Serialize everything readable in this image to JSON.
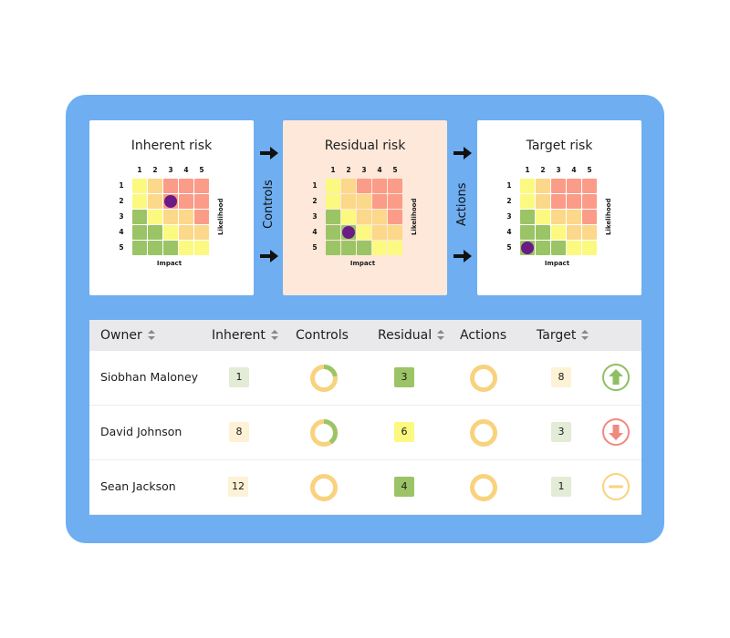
{
  "colors": {
    "frame": "#6eaef1",
    "residual_card_bg": "#fde8da",
    "dot": "#6a1b86",
    "green": "#9bc466",
    "yellow": "#fbf980",
    "light_orange": "#fbd88a",
    "salmon": "#fb9c89",
    "ring_track": "#f9d27e",
    "ring_fill": "#9bc466"
  },
  "matrices": [
    {
      "title": "Inherent risk",
      "x_axis_label": "Impact",
      "y_axis_label": "Likelihood",
      "columns": [
        "1",
        "2",
        "3",
        "4",
        "5"
      ],
      "rows": [
        "1",
        "2",
        "3",
        "4",
        "5"
      ],
      "cells": [
        [
          "Y",
          "O",
          "S",
          "S",
          "S"
        ],
        [
          "Y",
          "O",
          "S",
          "S",
          "S"
        ],
        [
          "G",
          "Y",
          "O",
          "O",
          "S"
        ],
        [
          "G",
          "G",
          "Y",
          "O",
          "O"
        ],
        [
          "G",
          "G",
          "G",
          "Y",
          "Y"
        ]
      ],
      "marker": {
        "row": 2,
        "col": 3
      }
    },
    {
      "title": "Residual risk",
      "x_axis_label": "Impact",
      "y_axis_label": "Likelihood",
      "columns": [
        "1",
        "2",
        "3",
        "4",
        "5"
      ],
      "rows": [
        "1",
        "2",
        "3",
        "4",
        "5"
      ],
      "cells": [
        [
          "Y",
          "O",
          "S",
          "S",
          "S"
        ],
        [
          "Y",
          "O",
          "O",
          "S",
          "S"
        ],
        [
          "G",
          "Y",
          "O",
          "O",
          "S"
        ],
        [
          "G",
          "G",
          "Y",
          "O",
          "O"
        ],
        [
          "G",
          "G",
          "G",
          "Y",
          "Y"
        ]
      ],
      "marker": {
        "row": 4,
        "col": 2
      }
    },
    {
      "title": "Target risk",
      "x_axis_label": "Impact",
      "y_axis_label": "Likelihood",
      "columns": [
        "1",
        "2",
        "3",
        "4",
        "5"
      ],
      "rows": [
        "1",
        "2",
        "3",
        "4",
        "5"
      ],
      "cells": [
        [
          "Y",
          "O",
          "S",
          "S",
          "S"
        ],
        [
          "Y",
          "O",
          "S",
          "S",
          "S"
        ],
        [
          "G",
          "Y",
          "O",
          "O",
          "S"
        ],
        [
          "G",
          "G",
          "Y",
          "O",
          "O"
        ],
        [
          "G",
          "G",
          "G",
          "Y",
          "Y"
        ]
      ],
      "marker": {
        "row": 5,
        "col": 1
      }
    }
  ],
  "connectors": {
    "controls_label": "Controls",
    "actions_label": "Actions"
  },
  "table": {
    "headers": {
      "owner": "Owner",
      "inherent": "Inherent",
      "controls": "Controls",
      "residual": "Residual",
      "actions": "Actions",
      "target": "Target"
    },
    "rows": [
      {
        "owner": "Siobhan Maloney",
        "inherent": "1",
        "inherent_color": "#e3ecd6",
        "controls_progress": 0.22,
        "residual": "3",
        "residual_color": "#9bc466",
        "actions_progress": 0,
        "target": "8",
        "target_color": "#fdf2d6",
        "trend": "up",
        "trend_icon": "arrow-up-circle-icon",
        "trend_color": "#8fbf63"
      },
      {
        "owner": "David Johnson",
        "inherent": "8",
        "inherent_color": "#fdf2d6",
        "controls_progress": 0.4,
        "residual": "6",
        "residual_color": "#fbf980",
        "actions_progress": 0,
        "target": "3",
        "target_color": "#e3ecd6",
        "trend": "down",
        "trend_icon": "arrow-down-circle-icon",
        "trend_color": "#f08a80"
      },
      {
        "owner": "Sean Jackson",
        "inherent": "12",
        "inherent_color": "#fdf2d6",
        "controls_progress": 0,
        "residual": "4",
        "residual_color": "#9bc466",
        "actions_progress": 0,
        "target": "1",
        "target_color": "#e3ecd6",
        "trend": "flat",
        "trend_icon": "minus-circle-icon",
        "trend_color": "#f9d27e"
      }
    ]
  }
}
